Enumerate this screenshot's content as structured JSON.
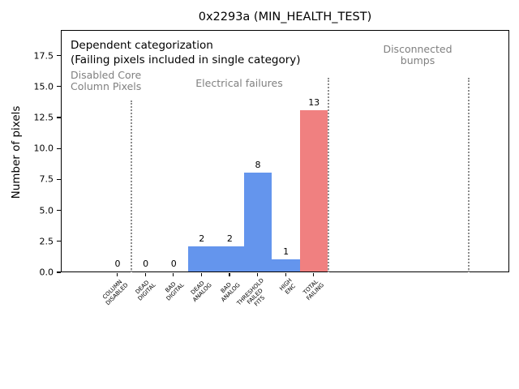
{
  "chart_data": {
    "type": "bar",
    "title": "0x2293a (MIN_HEALTH_TEST)",
    "ylabel": "Number of pixels",
    "xlabel": "",
    "categories": [
      "COLUMN\nDISABLED",
      "DEAD\nDIGITAL",
      "BAD\nDIGITAL",
      "DEAD\nANALOG",
      "BAD\nANALOG",
      "THRESHOLD\nFAILED\nFITS",
      "HIGH\nENC",
      "TOTAL\nFAILING"
    ],
    "values": [
      0,
      0,
      0,
      2,
      2,
      8,
      1,
      13
    ],
    "value_labels": [
      "0",
      "0",
      "0",
      "2",
      "2",
      "8",
      "1",
      "13"
    ],
    "bar_colors": [
      "#6495ed",
      "#6495ed",
      "#6495ed",
      "#6495ed",
      "#6495ed",
      "#6495ed",
      "#6495ed",
      "#f08080"
    ],
    "yticks": [
      "0.0",
      "2.5",
      "5.0",
      "7.5",
      "10.0",
      "12.5",
      "15.0",
      "17.5"
    ],
    "ylim": [
      0,
      19.6
    ],
    "grid": false,
    "legend": null,
    "separators_x_data": [
      0.5,
      7.5,
      12.5
    ],
    "annotation_heading": "Dependent categorization",
    "annotation_subheading": "(Failing pixels included in single category)",
    "section_labels": [
      "Disabled Core\nColumn Pixels",
      "Electrical failures",
      "Disconnected\nbumps"
    ],
    "colors": {
      "bar_blue": "#6495ed",
      "bar_red": "#f08080",
      "annotation_gray": "#808080",
      "separator_gray": "#8c8c8c",
      "axis": "#000000"
    }
  }
}
